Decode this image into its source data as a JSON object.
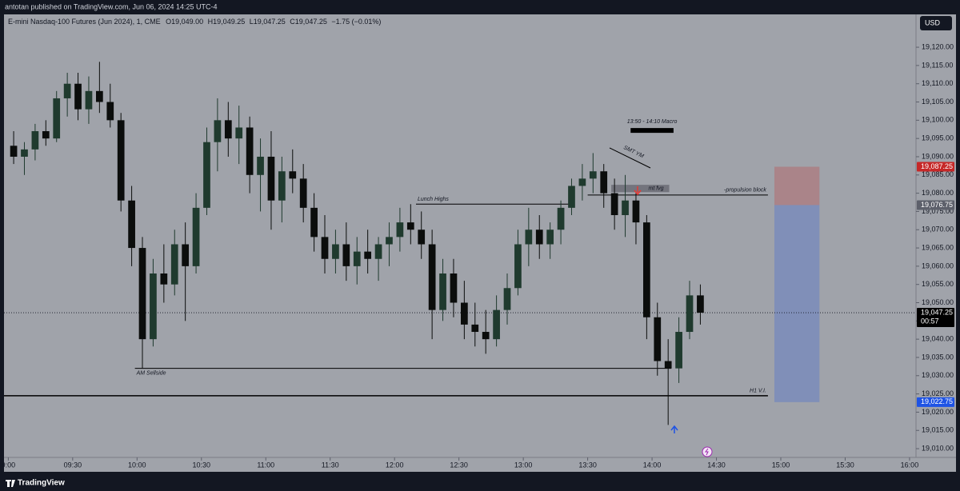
{
  "header": {
    "published": "antotan published on TradingView.com, Jun 06, 2024 14:25 UTC-4",
    "brand": "TradingView"
  },
  "chart_data": {
    "type": "candlestick",
    "symbol": "E-mini Nasdaq-100 Futures (Jun 2024), 1, CME",
    "ohlc_labels": [
      "O19,049.00",
      "H19,049.25",
      "L19,047.25",
      "C19,047.25"
    ],
    "change": "−1.75 (−0.01%)",
    "currency": "USD",
    "up_color": "#1f3a2e",
    "down_color": "#0b0d0c",
    "background": "#a0a3aa",
    "x": [
      "09:00",
      "09:05",
      "09:10",
      "09:15",
      "09:20",
      "09:25",
      "09:30",
      "09:35",
      "09:40",
      "09:45",
      "09:50",
      "09:55",
      "10:00",
      "10:05",
      "10:10",
      "10:15",
      "10:20",
      "10:25",
      "10:30",
      "10:35",
      "10:40",
      "10:45",
      "10:50",
      "10:55",
      "11:00",
      "11:05",
      "11:10",
      "11:15",
      "11:20",
      "11:25",
      "11:30",
      "11:35",
      "11:40",
      "11:45",
      "11:50",
      "11:55",
      "12:00",
      "12:05",
      "12:10",
      "12:15",
      "12:20",
      "12:25",
      "12:30",
      "12:35",
      "12:40",
      "12:45",
      "12:50",
      "12:55",
      "13:00",
      "13:05",
      "13:10",
      "13:15",
      "13:20",
      "13:25",
      "13:30",
      "13:35",
      "13:40",
      "13:45",
      "13:50",
      "13:55",
      "14:00",
      "14:05",
      "14:10",
      "14:15",
      "14:20"
    ],
    "open": [
      19093,
      19090,
      19092,
      19097,
      19095,
      19106,
      19110,
      19103,
      19108,
      19105,
      19100,
      19078,
      19065,
      19040,
      19058,
      19055,
      19066,
      19060,
      19076,
      19094,
      19100,
      19095,
      19098,
      19085,
      19090,
      19078,
      19086,
      19084,
      19076,
      19068,
      19062,
      19066,
      19060,
      19064,
      19062,
      19066,
      19068,
      19072,
      19070,
      19066,
      19048,
      19058,
      19050,
      19044,
      19042,
      19040,
      19048,
      19054,
      19066,
      19070,
      19066,
      19070,
      19076,
      19082,
      19084,
      19086,
      19080,
      19074,
      19078,
      19072,
      19046,
      19034,
      19032,
      19042,
      19052
    ],
    "high": [
      19097,
      19094,
      19099,
      19100,
      19108,
      19113,
      19113,
      19112,
      19116,
      19110,
      19102,
      19082,
      19068,
      19062,
      19066,
      19070,
      19072,
      19080,
      19098,
      19106,
      19105,
      19104,
      19101,
      19095,
      19097,
      19090,
      19092,
      19088,
      19080,
      19074,
      19070,
      19072,
      19068,
      19070,
      19068,
      19072,
      19076,
      19077,
      19075,
      19070,
      19062,
      19062,
      19056,
      19050,
      19048,
      19052,
      19058,
      19070,
      19076,
      19074,
      19072,
      19078,
      19084,
      19088,
      19091,
      19088,
      19084,
      19085,
      19080,
      19074,
      19050,
      19040,
      19046,
      19056,
      19055
    ],
    "low": [
      19088,
      19085,
      19089,
      19093,
      19094,
      19101,
      19100,
      19099,
      19102,
      19098,
      19075,
      19060,
      19032,
      19038,
      19050,
      19052,
      19045,
      19058,
      19074,
      19086,
      19090,
      19088,
      19080,
      19075,
      19070,
      19072,
      19080,
      19072,
      19064,
      19058,
      19058,
      19056,
      19055,
      19058,
      19056,
      19060,
      19064,
      19066,
      19062,
      19040,
      19045,
      19046,
      19040,
      19038,
      19036,
      19038,
      19044,
      19052,
      19060,
      19062,
      19062,
      19066,
      19074,
      19078,
      19080,
      19076,
      19070,
      19068,
      19066,
      19040,
      19030,
      19016.5,
      19028,
      19040,
      19044
    ],
    "close": [
      19090,
      19092,
      19097,
      19095,
      19106,
      19110,
      19103,
      19108,
      19105,
      19100,
      19078,
      19065,
      19040,
      19058,
      19055,
      19066,
      19060,
      19076,
      19094,
      19100,
      19095,
      19098,
      19085,
      19090,
      19078,
      19086,
      19084,
      19076,
      19068,
      19062,
      19066,
      19060,
      19064,
      19062,
      19066,
      19068,
      19072,
      19070,
      19066,
      19048,
      19058,
      19050,
      19044,
      19042,
      19040,
      19048,
      19054,
      19066,
      19070,
      19066,
      19070,
      19076,
      19082,
      19084,
      19086,
      19080,
      19074,
      19078,
      19072,
      19046,
      19034,
      19032,
      19042,
      19052,
      19047.25
    ],
    "ylim": [
      19007.6,
      19129
    ],
    "yticks": [
      {
        "value": 19010,
        "label": "19,010.00"
      },
      {
        "value": 19015,
        "label": "19,015.00"
      },
      {
        "value": 19020,
        "label": "19,020.00"
      },
      {
        "value": 19025,
        "label": "19,025.00"
      },
      {
        "value": 19030,
        "label": "19,030.00"
      },
      {
        "value": 19035,
        "label": "19,035.00"
      },
      {
        "value": 19040,
        "label": "19,040.00"
      },
      {
        "value": 19045,
        "label": "19,045.00"
      },
      {
        "value": 19050,
        "label": "19,050.00"
      },
      {
        "value": 19055,
        "label": "19,055.00"
      },
      {
        "value": 19060,
        "label": "19,060.00"
      },
      {
        "value": 19065,
        "label": "19,065.00"
      },
      {
        "value": 19070,
        "label": "19,070.00"
      },
      {
        "value": 19075,
        "label": "19,075.00"
      },
      {
        "value": 19080,
        "label": "19,080.00"
      },
      {
        "value": 19085,
        "label": "19,085.00"
      },
      {
        "value": 19090,
        "label": "19,090.00"
      },
      {
        "value": 19095,
        "label": "19,095.00"
      },
      {
        "value": 19100,
        "label": "19,100.00"
      },
      {
        "value": 19105,
        "label": "19,105.00"
      },
      {
        "value": 19110,
        "label": "19,110.00"
      },
      {
        "value": 19115,
        "label": "19,115.00"
      },
      {
        "value": 19120,
        "label": "19,120.00"
      }
    ],
    "xlim": [
      "08:58",
      "16:03"
    ],
    "xticks": [
      {
        "value": "09:00",
        "label": "9:00"
      },
      "09:30",
      "10:00",
      "10:30",
      "11:00",
      "11:30",
      "12:00",
      "12:30",
      "13:00",
      "13:30",
      "14:00",
      "14:30",
      "15:00",
      "15:30",
      "16:00"
    ],
    "levels": [
      {
        "label": "Lunch Highs",
        "value": 19077,
        "from": "12:10",
        "to": "13:24"
      },
      {
        "label": "AM Sellside",
        "value": 19032,
        "from": "09:59",
        "to": "14:09"
      },
      {
        "label": "H1 V.I.",
        "value": 19024.5,
        "from": "08:58",
        "to": "14:54"
      },
      {
        "label": "-propulsion block",
        "value": 19079.5,
        "from": "13:30",
        "to": "14:54"
      }
    ],
    "fvg": {
      "label": "mt fvg",
      "top": 19082.3,
      "bottom": 19080.3,
      "from": "13:41",
      "to": "14:08"
    },
    "macro": {
      "label": "13:50 - 14:10 Macro",
      "value": 19097.2,
      "from": "13:50",
      "to": "14:10"
    },
    "smt": "SMT YM",
    "price_labels": [
      {
        "value": 19087.25,
        "label": "19,087.25",
        "color": "#c62828"
      },
      {
        "value": 19076.75,
        "label": "19,076.75",
        "color": "#5d606b"
      },
      {
        "value": 19047.25,
        "label": "19,047.25",
        "color": "#000000"
      },
      {
        "value": 19022.75,
        "label": "19,022.75",
        "color": "#1e53e5"
      }
    ],
    "countdown": "00:57",
    "position": {
      "from": "14:57",
      "to": "15:18"
    }
  }
}
